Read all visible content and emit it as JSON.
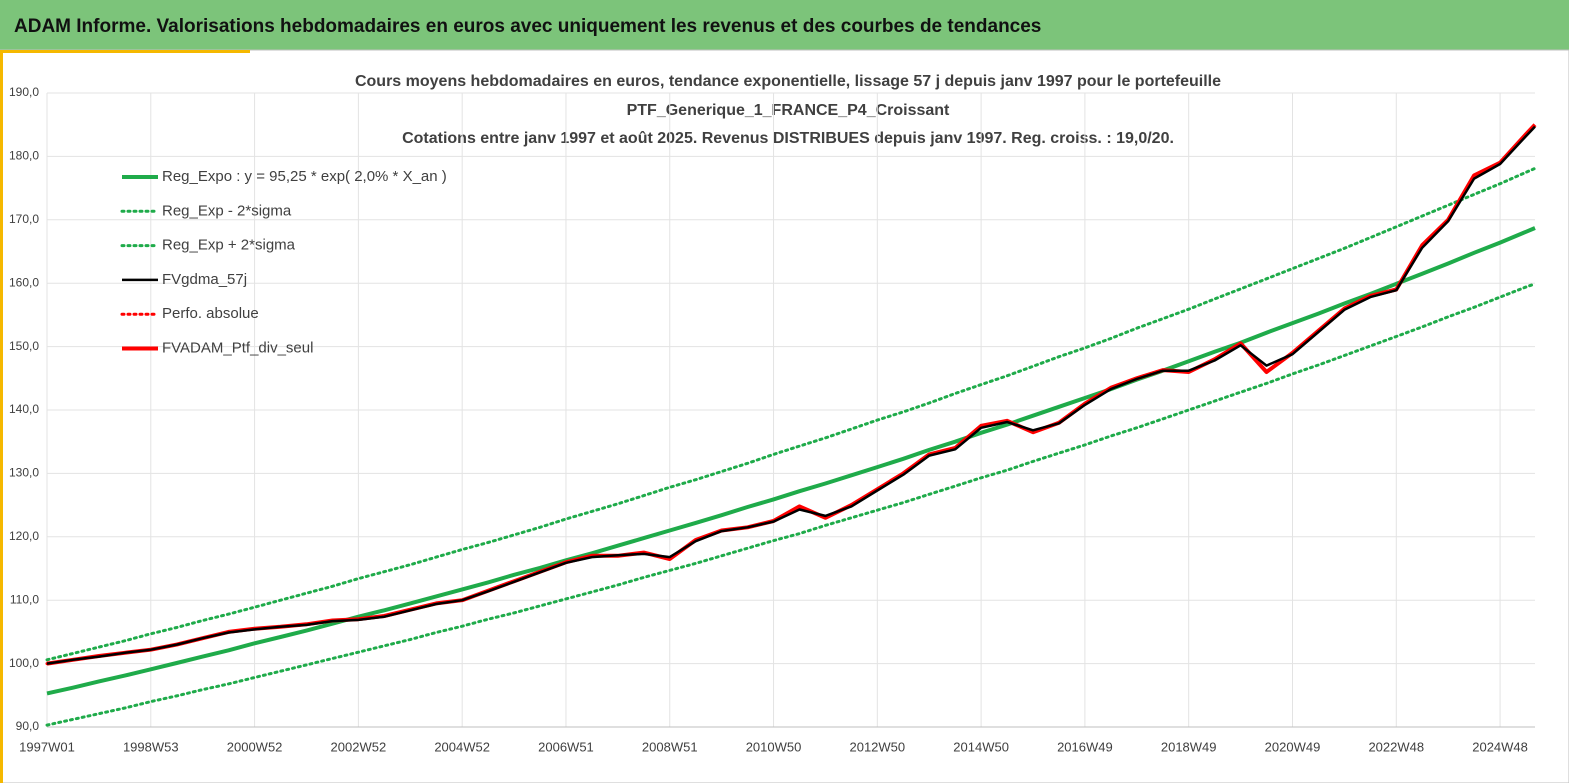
{
  "header": {
    "title": "ADAM Informe. Valorisations hebdomadaires en euros avec uniquement les revenus et des courbes de tendances"
  },
  "chart_data": {
    "type": "line",
    "title": [
      "Cours moyens hebdomadaires  en euros, tendance exponentielle, lissage 57 j depuis janv 1997 pour le portefeuille",
      "PTF_Generique_1_FRANCE_P4_Croissant",
      "Cotations entre janv 1997 et août 2025. Revenus DISTRIBUES depuis janv 1997. Reg. croiss. : 19,0/20."
    ],
    "x": [
      0,
      26,
      52,
      78,
      104,
      130,
      156,
      182,
      208,
      234,
      260,
      286,
      312,
      338,
      364,
      390,
      416,
      442,
      468,
      494,
      520,
      546,
      572,
      598,
      624,
      650,
      676,
      702,
      728,
      754,
      780,
      806,
      832,
      858,
      884,
      910,
      936,
      962,
      988,
      1014,
      1040,
      1066,
      1092,
      1118,
      1144,
      1170,
      1196,
      1222,
      1248,
      1274,
      1300,
      1326,
      1352,
      1378,
      1404,
      1430,
      1456,
      1482,
      1491
    ],
    "xlim": [
      0,
      1491
    ],
    "xticks": [
      {
        "value": 0,
        "label": "1997W01"
      },
      {
        "value": 104,
        "label": "1998W53"
      },
      {
        "value": 208,
        "label": "2000W52"
      },
      {
        "value": 312,
        "label": "2002W52"
      },
      {
        "value": 416,
        "label": "2004W52"
      },
      {
        "value": 520,
        "label": "2006W51"
      },
      {
        "value": 624,
        "label": "2008W51"
      },
      {
        "value": 728,
        "label": "2010W50"
      },
      {
        "value": 832,
        "label": "2012W50"
      },
      {
        "value": 936,
        "label": "2014W50"
      },
      {
        "value": 1040,
        "label": "2016W49"
      },
      {
        "value": 1144,
        "label": "2018W49"
      },
      {
        "value": 1248,
        "label": "2020W49"
      },
      {
        "value": 1352,
        "label": "2022W48"
      },
      {
        "value": 1456,
        "label": "2024W48"
      }
    ],
    "ylim": [
      90,
      190
    ],
    "yticks": [
      {
        "value": 90,
        "label": "90,0"
      },
      {
        "value": 100,
        "label": "100,0"
      },
      {
        "value": 110,
        "label": "110,0"
      },
      {
        "value": 120,
        "label": "120,0"
      },
      {
        "value": 130,
        "label": "130,0"
      },
      {
        "value": 140,
        "label": "140,0"
      },
      {
        "value": 150,
        "label": "150,0"
      },
      {
        "value": 160,
        "label": "160,0"
      },
      {
        "value": 170,
        "label": "170,0"
      },
      {
        "value": 180,
        "label": "180,0"
      },
      {
        "value": 190,
        "label": "190,0"
      }
    ],
    "grid": true,
    "legend": "top-left",
    "series": [
      {
        "name": "Reg_Expo : y = 95,25 * exp( 2,0% *  X_an )",
        "color": "#1fab4a",
        "style": "solid",
        "values": [
          95.3,
          96.2,
          97.2,
          98.1,
          99.1,
          100.1,
          101.1,
          102.1,
          103.2,
          104.2,
          105.2,
          106.3,
          107.4,
          108.4,
          109.5,
          110.6,
          111.7,
          112.8,
          114.0,
          115.1,
          116.3,
          117.4,
          118.6,
          119.8,
          121.0,
          122.2,
          123.4,
          124.7,
          125.9,
          127.2,
          128.4,
          129.7,
          131.0,
          132.3,
          133.7,
          135.0,
          136.4,
          137.7,
          139.1,
          140.5,
          141.9,
          143.3,
          144.8,
          146.2,
          147.7,
          149.2,
          150.6,
          152.2,
          153.7,
          155.2,
          156.8,
          158.3,
          159.9,
          161.5,
          163.1,
          164.8,
          166.4,
          168.1,
          168.7
        ]
      },
      {
        "name": "Reg_Exp - 2*sigma",
        "color": "#1fab4a",
        "style": "dotted",
        "values": [
          90.3,
          91.2,
          92.1,
          93.0,
          94.0,
          94.9,
          95.9,
          96.8,
          97.8,
          98.8,
          99.8,
          100.8,
          101.8,
          102.8,
          103.8,
          104.9,
          105.9,
          107.0,
          108.0,
          109.1,
          110.2,
          111.3,
          112.4,
          113.6,
          114.7,
          115.8,
          117.0,
          118.2,
          119.4,
          120.5,
          121.8,
          123.0,
          124.2,
          125.4,
          126.7,
          128.0,
          129.3,
          130.5,
          131.9,
          133.2,
          134.5,
          135.9,
          137.2,
          138.6,
          140.0,
          141.4,
          142.8,
          144.2,
          145.7,
          147.1,
          148.6,
          150.1,
          151.6,
          153.1,
          154.7,
          156.2,
          157.8,
          159.4,
          159.9
        ]
      },
      {
        "name": "Reg_Exp + 2*sigma",
        "color": "#1fab4a",
        "style": "dotted",
        "values": [
          100.6,
          101.6,
          102.6,
          103.6,
          104.7,
          105.7,
          106.8,
          107.8,
          108.9,
          110.0,
          111.1,
          112.2,
          113.4,
          114.5,
          115.6,
          116.8,
          118.0,
          119.1,
          120.3,
          121.5,
          122.8,
          124.0,
          125.2,
          126.5,
          127.8,
          129.0,
          130.3,
          131.6,
          133.0,
          134.3,
          135.6,
          137.0,
          138.4,
          139.7,
          141.1,
          142.6,
          144.0,
          145.4,
          146.9,
          148.4,
          149.8,
          151.3,
          152.9,
          154.4,
          155.9,
          157.5,
          159.1,
          160.7,
          162.3,
          163.9,
          165.5,
          167.2,
          168.9,
          170.6,
          172.3,
          174.0,
          175.7,
          177.5,
          178.1
        ]
      },
      {
        "name": "FVgdma_57j",
        "color": "#000000",
        "style": "solid",
        "values": [
          100.0,
          100.6,
          101.1,
          101.7,
          102.2,
          103.0,
          104.0,
          104.9,
          105.4,
          105.8,
          106.1,
          106.7,
          106.9,
          107.4,
          108.4,
          109.4,
          110.0,
          111.4,
          112.9,
          114.4,
          115.9,
          116.8,
          117.1,
          117.3,
          116.8,
          119.3,
          120.9,
          121.5,
          122.4,
          124.3,
          123.3,
          124.8,
          127.3,
          129.8,
          132.8,
          133.8,
          137.2,
          138.1,
          136.8,
          137.9,
          140.8,
          143.3,
          144.9,
          146.2,
          146.2,
          147.8,
          150.2,
          147.0,
          148.8,
          152.3,
          155.8,
          157.8,
          158.9,
          165.6,
          169.8,
          176.5,
          178.8,
          183.2,
          184.7
        ]
      },
      {
        "name": "Perfo. absolue",
        "color": "#ff0000",
        "style": "dotted",
        "values": [
          100.0,
          100.6,
          101.2,
          101.7,
          102.2,
          103.0,
          104.0,
          105.0,
          105.5,
          105.8,
          106.2,
          106.8,
          107.0,
          107.5,
          108.5,
          109.5,
          110.0,
          111.5,
          113.0,
          114.5,
          116.0,
          117.0,
          117.0,
          117.5,
          116.5,
          119.5,
          121.0,
          121.5,
          122.5,
          124.8,
          123.0,
          125.0,
          127.5,
          130.0,
          133.0,
          134.0,
          137.5,
          138.3,
          136.5,
          138.0,
          141.0,
          143.5,
          145.0,
          146.3,
          146.0,
          148.0,
          150.5,
          146.0,
          149.0,
          152.5,
          156.0,
          158.0,
          159.0,
          166.0,
          170.0,
          177.0,
          179.0,
          183.5,
          185.0
        ]
      },
      {
        "name": "FVADAM_Ptf_div_seul",
        "color": "#ff0000",
        "style": "solid",
        "values": [
          100.0,
          100.6,
          101.2,
          101.7,
          102.2,
          103.0,
          104.0,
          105.0,
          105.5,
          105.8,
          106.2,
          106.8,
          107.0,
          107.5,
          108.5,
          109.5,
          110.0,
          111.5,
          113.0,
          114.5,
          116.0,
          117.0,
          117.0,
          117.5,
          116.5,
          119.5,
          121.0,
          121.5,
          122.5,
          124.8,
          123.0,
          125.0,
          127.5,
          130.0,
          133.0,
          134.0,
          137.5,
          138.3,
          136.5,
          138.0,
          141.0,
          143.5,
          145.0,
          146.3,
          146.0,
          148.0,
          150.5,
          146.0,
          149.0,
          152.5,
          156.0,
          158.0,
          159.0,
          166.0,
          170.0,
          177.0,
          179.0,
          183.5,
          185.0
        ]
      }
    ]
  }
}
